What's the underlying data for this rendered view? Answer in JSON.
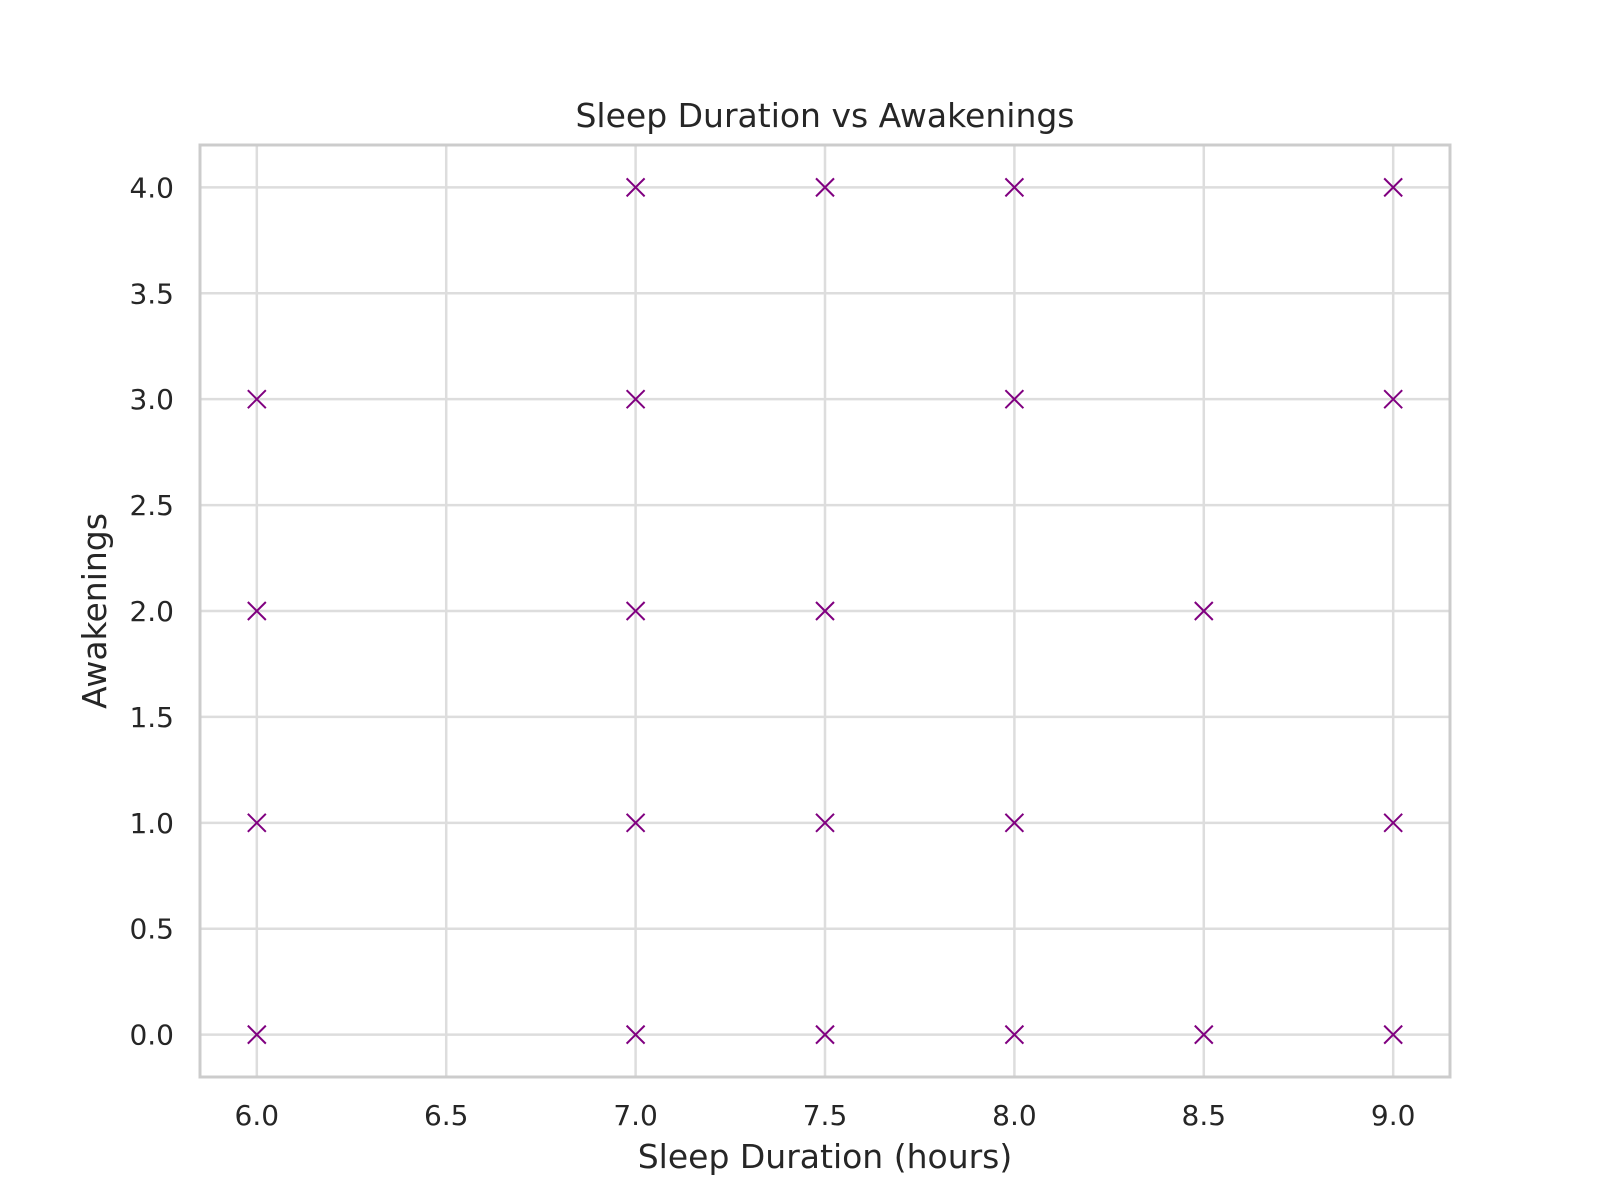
{
  "chart_data": {
    "type": "scatter",
    "title": "Sleep Duration vs Awakenings",
    "xlabel": "Sleep Duration (hours)",
    "ylabel": "Awakenings",
    "xlim": [
      5.85,
      9.15
    ],
    "ylim": [
      -0.2,
      4.2
    ],
    "x_ticks": [
      "6.0",
      "6.5",
      "7.0",
      "7.5",
      "8.0",
      "8.5",
      "9.0"
    ],
    "y_ticks": [
      "0.0",
      "0.5",
      "1.0",
      "1.5",
      "2.0",
      "2.5",
      "3.0",
      "3.5",
      "4.0"
    ],
    "grid": true,
    "legend": "none",
    "marker": "x",
    "marker_color": "#800080",
    "grid_color": "#dddddd",
    "spine_color": "#cccccc",
    "points": [
      {
        "x": 6.0,
        "y": 0
      },
      {
        "x": 6.0,
        "y": 1
      },
      {
        "x": 6.0,
        "y": 2
      },
      {
        "x": 6.0,
        "y": 3
      },
      {
        "x": 7.0,
        "y": 0
      },
      {
        "x": 7.0,
        "y": 1
      },
      {
        "x": 7.0,
        "y": 2
      },
      {
        "x": 7.0,
        "y": 3
      },
      {
        "x": 7.0,
        "y": 4
      },
      {
        "x": 7.5,
        "y": 0
      },
      {
        "x": 7.5,
        "y": 1
      },
      {
        "x": 7.5,
        "y": 2
      },
      {
        "x": 7.5,
        "y": 4
      },
      {
        "x": 8.0,
        "y": 0
      },
      {
        "x": 8.0,
        "y": 1
      },
      {
        "x": 8.0,
        "y": 3
      },
      {
        "x": 8.0,
        "y": 4
      },
      {
        "x": 8.5,
        "y": 0
      },
      {
        "x": 8.5,
        "y": 2
      },
      {
        "x": 9.0,
        "y": 0
      },
      {
        "x": 9.0,
        "y": 1
      },
      {
        "x": 9.0,
        "y": 3
      },
      {
        "x": 9.0,
        "y": 4
      }
    ]
  }
}
